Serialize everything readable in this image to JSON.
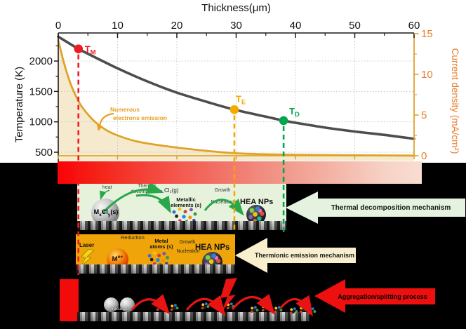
{
  "colors": {
    "temperature_curve": "#4d4d4d",
    "current_curve": "#DFA32A",
    "current_axis_text": "#E87D2A",
    "marker_tm": "#EC1C24",
    "marker_te": "#F2A900",
    "marker_td": "#00A550",
    "heat_band_left": "#FB0207",
    "heat_band_right": "#F9DDD2",
    "panel_thermal_bg": "#E7F2DC",
    "panel_thermionic_bg": "#EFA50A",
    "arrow_thermal_bg": "#E5F2DF",
    "arrow_thermionic_bg": "#F8EFCE",
    "arrow_aggregation_bg": "#EE0F0F"
  },
  "chart": {
    "title_top": "Thickness(μm)",
    "ylabel_left": "Temperature (K)",
    "ylabel_right": "Current density (mA/cm²)",
    "annotation_line1": "Numerous",
    "annotation_line2": "electrons emission"
  },
  "chart_data": {
    "type": "line",
    "xlabel": "Thickness(μm)",
    "xlim": [
      0,
      60
    ],
    "x_ticks": [
      0,
      10,
      20,
      30,
      40,
      50,
      60
    ],
    "ylabel_left": "Temperature (K)",
    "ylim_left": [
      380,
      2460
    ],
    "y_ticks_left": [
      500,
      1000,
      1500,
      2000
    ],
    "ylabel_right": "Current density (mA/cm²)",
    "ylim_right": [
      0,
      15
    ],
    "y_ticks_right": [
      0,
      5,
      10,
      15
    ],
    "grid": true,
    "legend": false,
    "series": [
      {
        "name": "Temperature",
        "axis": "left",
        "color": "#4d4d4d",
        "x": [
          0,
          3.4,
          5,
          10,
          15,
          20,
          25,
          29.7,
          35,
          38,
          40,
          45,
          50,
          55,
          60
        ],
        "y": [
          2400,
          2200,
          2120,
          1880,
          1665,
          1480,
          1330,
          1200,
          1085,
          1020,
          985,
          905,
          840,
          785,
          720
        ]
      },
      {
        "name": "Current density",
        "axis": "right",
        "color": "#DFA32A",
        "fill": "#F5E8C9",
        "x": [
          0,
          1,
          2,
          3,
          4,
          6,
          8,
          10,
          13,
          16,
          20,
          25,
          30,
          35,
          40,
          50,
          60
        ],
        "y": [
          14.2,
          11.3,
          9.0,
          7.3,
          6.0,
          4.3,
          3.2,
          2.5,
          1.8,
          1.4,
          1.0,
          0.6,
          0.3,
          0.18,
          0.12,
          0.05,
          0.02
        ]
      }
    ],
    "markers": [
      {
        "label": "T",
        "sub": "M",
        "x": 3.4,
        "temperature_K": 2200,
        "color": "#EC1C24"
      },
      {
        "label": "T",
        "sub": "E",
        "x": 29.7,
        "temperature_K": 1200,
        "color": "#F2A900"
      },
      {
        "label": "T",
        "sub": "D",
        "x": 38,
        "temperature_K": 1020,
        "color": "#00A550"
      }
    ],
    "annotation": "Numerous electrons emission"
  },
  "panels": {
    "thermal": {
      "heat": "heat",
      "step_line1": "Thermal",
      "step_line2": "decomposition",
      "gas": "Cl₂(g)",
      "precursor_m": "M",
      "precursor_x": "x",
      "precursor_cl": "Cl",
      "precursor_y": "y",
      "precursor_s": "(s)",
      "metallic_line1": "Metallic",
      "metallic_line2": "elements (s)",
      "growth": "Growth",
      "nucleation": "Nucleation",
      "product": "HEA NPs",
      "mechanism": "Thermal decomposition mechanism"
    },
    "thermionic": {
      "laser": "Laser",
      "reduction": "Reduction",
      "ion_m": "M",
      "ion_sup": "n+",
      "atoms_line1": "Metal",
      "atoms_line2": "atoms (s)",
      "growth": "Growth",
      "nucleation": "Nucleation",
      "product": "HEA NPs",
      "mechanism": "Thermionic emission mechanism"
    },
    "aggregation": {
      "precursor": "precursor",
      "mechanism": "Aggregation/splitting process"
    }
  }
}
